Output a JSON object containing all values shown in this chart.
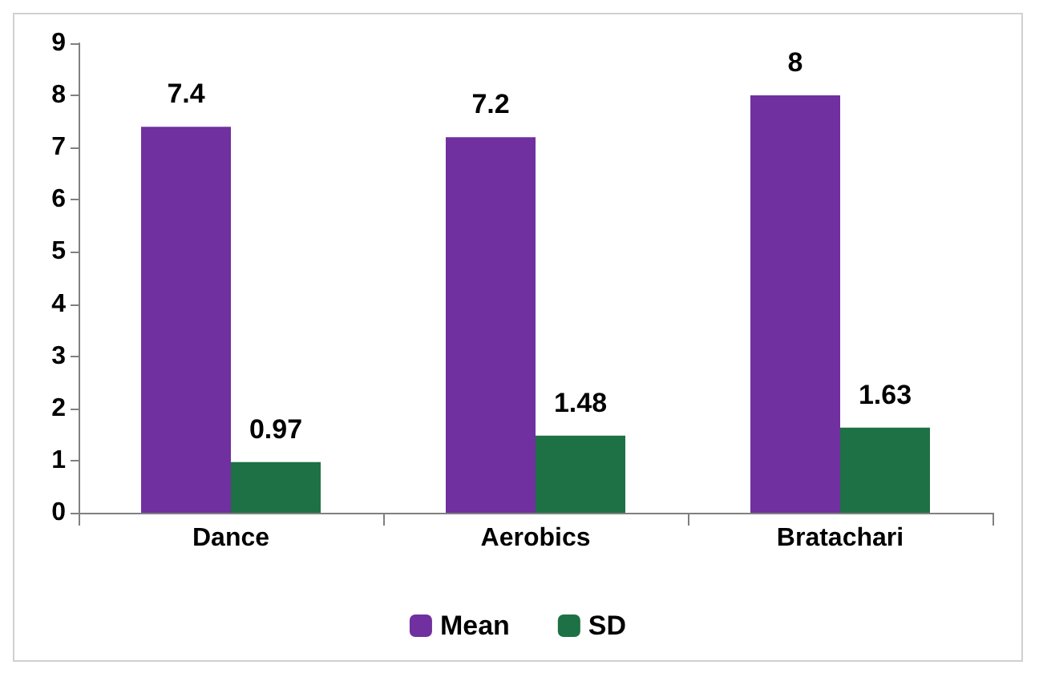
{
  "chart_data": {
    "type": "bar",
    "categories": [
      "Dance",
      "Aerobics",
      "Bratachari"
    ],
    "series": [
      {
        "name": "Mean",
        "color": "#7030a0",
        "values": [
          7.4,
          7.2,
          8
        ]
      },
      {
        "name": "SD",
        "color": "#1e7145",
        "values": [
          0.97,
          1.48,
          1.63
        ]
      }
    ],
    "ylim": [
      0,
      9
    ],
    "yticks": [
      0,
      1,
      2,
      3,
      4,
      5,
      6,
      7,
      8,
      9
    ],
    "grid": false,
    "legend": "bottom",
    "data_labels": true
  }
}
